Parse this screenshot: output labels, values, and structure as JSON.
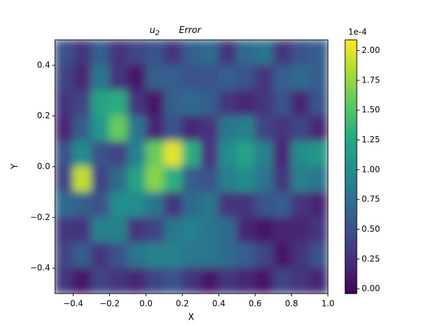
{
  "chart_data": {
    "type": "heatmap",
    "title": {
      "symbol": "u",
      "subscript": "2",
      "text": "Error"
    },
    "x_label": "X",
    "y_label": "Y",
    "x": [
      -0.45,
      -0.35,
      -0.25,
      -0.15,
      -0.05,
      0.05,
      0.15,
      0.25,
      0.35,
      0.45,
      0.55,
      0.65,
      0.75,
      0.85,
      0.95
    ],
    "y": [
      0.45,
      0.35,
      0.25,
      0.15,
      0.05,
      -0.05,
      -0.15,
      -0.25,
      -0.35,
      -0.45
    ],
    "values": [
      [
        0.5,
        0.3,
        0.6,
        0.3,
        0.4,
        0.5,
        0.3,
        0.6,
        0.7,
        0.3,
        0.7,
        0.8,
        0.3,
        0.5,
        0.6
      ],
      [
        0.4,
        0.2,
        0.8,
        0.3,
        0.1,
        0.6,
        0.6,
        0.5,
        0.5,
        0.6,
        0.5,
        0.3,
        0.6,
        0.7,
        0.6
      ],
      [
        0.3,
        0.4,
        1.2,
        1.3,
        0.3,
        0.1,
        0.6,
        0.7,
        0.6,
        0.3,
        0.2,
        0.3,
        0.5,
        0.2,
        0.5
      ],
      [
        0.2,
        0.6,
        1.1,
        1.6,
        0.8,
        0.2,
        0.5,
        0.2,
        0.3,
        0.8,
        0.9,
        0.4,
        0.3,
        0.4,
        0.2
      ],
      [
        0.5,
        1.0,
        0.5,
        0.4,
        0.9,
        1.6,
        2.0,
        1.3,
        0.3,
        1.0,
        1.2,
        0.9,
        0.2,
        1.0,
        1.1
      ],
      [
        0.4,
        1.9,
        0.4,
        0.7,
        1.2,
        1.7,
        1.3,
        0.6,
        0.5,
        0.9,
        1.0,
        0.8,
        0.3,
        0.9,
        0.8
      ],
      [
        0.7,
        0.6,
        0.5,
        1.0,
        1.0,
        0.8,
        0.3,
        0.7,
        0.8,
        0.3,
        0.3,
        0.5,
        0.6,
        0.3,
        0.2
      ],
      [
        0.3,
        0.3,
        0.9,
        0.9,
        0.3,
        0.4,
        0.8,
        0.9,
        0.8,
        0.7,
        0.2,
        0.1,
        0.2,
        0.2,
        0.3
      ],
      [
        0.4,
        0.6,
        0.3,
        0.5,
        0.8,
        0.9,
        0.9,
        0.8,
        0.8,
        0.7,
        0.6,
        0.4,
        0.1,
        0.3,
        0.5
      ],
      [
        0.3,
        0.1,
        0.4,
        0.3,
        0.2,
        0.4,
        0.5,
        0.3,
        0.1,
        0.3,
        0.2,
        0.1,
        0.4,
        0.3,
        0.2
      ]
    ],
    "xlim": [
      -0.5,
      1.0
    ],
    "xticks": [
      {
        "value": -0.4,
        "label": "−0.4"
      },
      {
        "value": -0.2,
        "label": "−0.2"
      },
      {
        "value": 0,
        "label": "0.0"
      },
      {
        "value": 0.2,
        "label": "0.2"
      },
      {
        "value": 0.4,
        "label": "0.4"
      },
      {
        "value": 0.6,
        "label": "0.6"
      },
      {
        "value": 0.8,
        "label": "0.8"
      },
      {
        "value": 1,
        "label": "1.0"
      }
    ],
    "ylim": [
      -0.5,
      0.5
    ],
    "yticks": [
      {
        "value": -0.4,
        "label": "−0.4"
      },
      {
        "value": -0.2,
        "label": "−0.2"
      },
      {
        "value": 0,
        "label": "0.0"
      },
      {
        "value": 0.2,
        "label": "0.2"
      },
      {
        "value": 0.4,
        "label": "0.4"
      }
    ],
    "colormap": "viridis",
    "colorbar": {
      "lim": [
        -0.04,
        2.09
      ],
      "offset_label": "1e-4",
      "ticks": [
        {
          "value": 0,
          "label": "0.00"
        },
        {
          "value": 0.25,
          "label": "0.25"
        },
        {
          "value": 0.5,
          "label": "0.50"
        },
        {
          "value": 0.75,
          "label": "0.75"
        },
        {
          "value": 1,
          "label": "1.00"
        },
        {
          "value": 1.25,
          "label": "1.25"
        },
        {
          "value": 1.5,
          "label": "1.50"
        },
        {
          "value": 1.75,
          "label": "1.75"
        },
        {
          "value": 2,
          "label": "2.00"
        }
      ]
    }
  }
}
